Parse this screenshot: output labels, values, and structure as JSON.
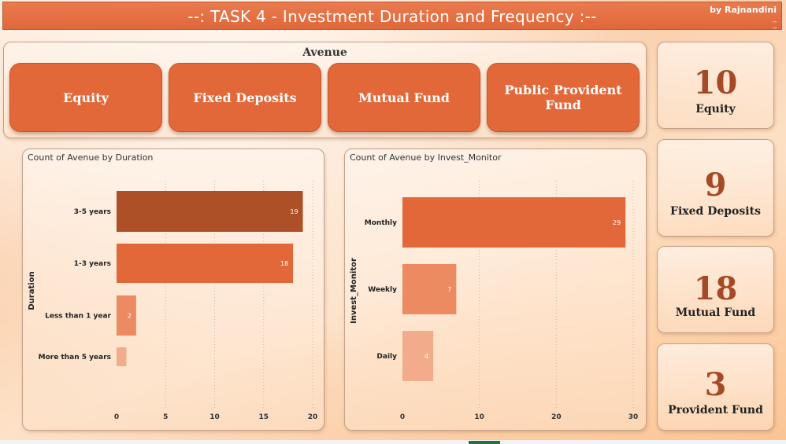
{
  "header": {
    "title": "--: TASK 4 - Investment Duration and Frequency :--",
    "byline": "by Rajnandini",
    "mark": "_\n_"
  },
  "slicer": {
    "title": "Avenue",
    "buttons": [
      "Equity",
      "Fixed Deposits",
      "Mutual Fund",
      "Public Provident Fund"
    ]
  },
  "cards": [
    {
      "value": "10",
      "label": "Equity"
    },
    {
      "value": "9",
      "label": "Fixed Deposits"
    },
    {
      "value": "18",
      "label": "Mutual Fund"
    },
    {
      "value": "3",
      "label": "Provident Fund"
    }
  ],
  "colors": {
    "accent": "#e2683a",
    "dark": "#ad5028",
    "light1": "#ec8a62",
    "light2": "#f0a07f",
    "light3": "#f2ab8b"
  },
  "chart_data": [
    {
      "type": "bar",
      "orientation": "horizontal",
      "title": "Count of Avenue by Duration",
      "ylabel": "Duration",
      "xlabel": "",
      "categories": [
        "3-5 years",
        "1-3 years",
        "Less than 1 year",
        "More than 5 years"
      ],
      "values": [
        19,
        18,
        2,
        1
      ],
      "data_labels": [
        "19",
        "18",
        "2",
        ""
      ],
      "xlim": [
        0,
        20
      ],
      "xticks": [
        "0",
        "5",
        "10",
        "15",
        "20"
      ],
      "bar_colors": [
        "#ad5028",
        "#e2683a",
        "#ec8a62",
        "#f2ab8b"
      ],
      "grid": true
    },
    {
      "type": "bar",
      "orientation": "horizontal",
      "title": "Count of Avenue by Invest_Monitor",
      "ylabel": "Invest_Monitor",
      "xlabel": "",
      "categories": [
        "Monthly",
        "Weekly",
        "Daily"
      ],
      "values": [
        29,
        7,
        4
      ],
      "data_labels": [
        "29",
        "7",
        "4"
      ],
      "xlim": [
        0,
        30
      ],
      "xticks": [
        "0",
        "10",
        "20",
        "30"
      ],
      "bar_colors": [
        "#e2683a",
        "#ec8a62",
        "#f2ab8b"
      ],
      "grid": true
    }
  ]
}
